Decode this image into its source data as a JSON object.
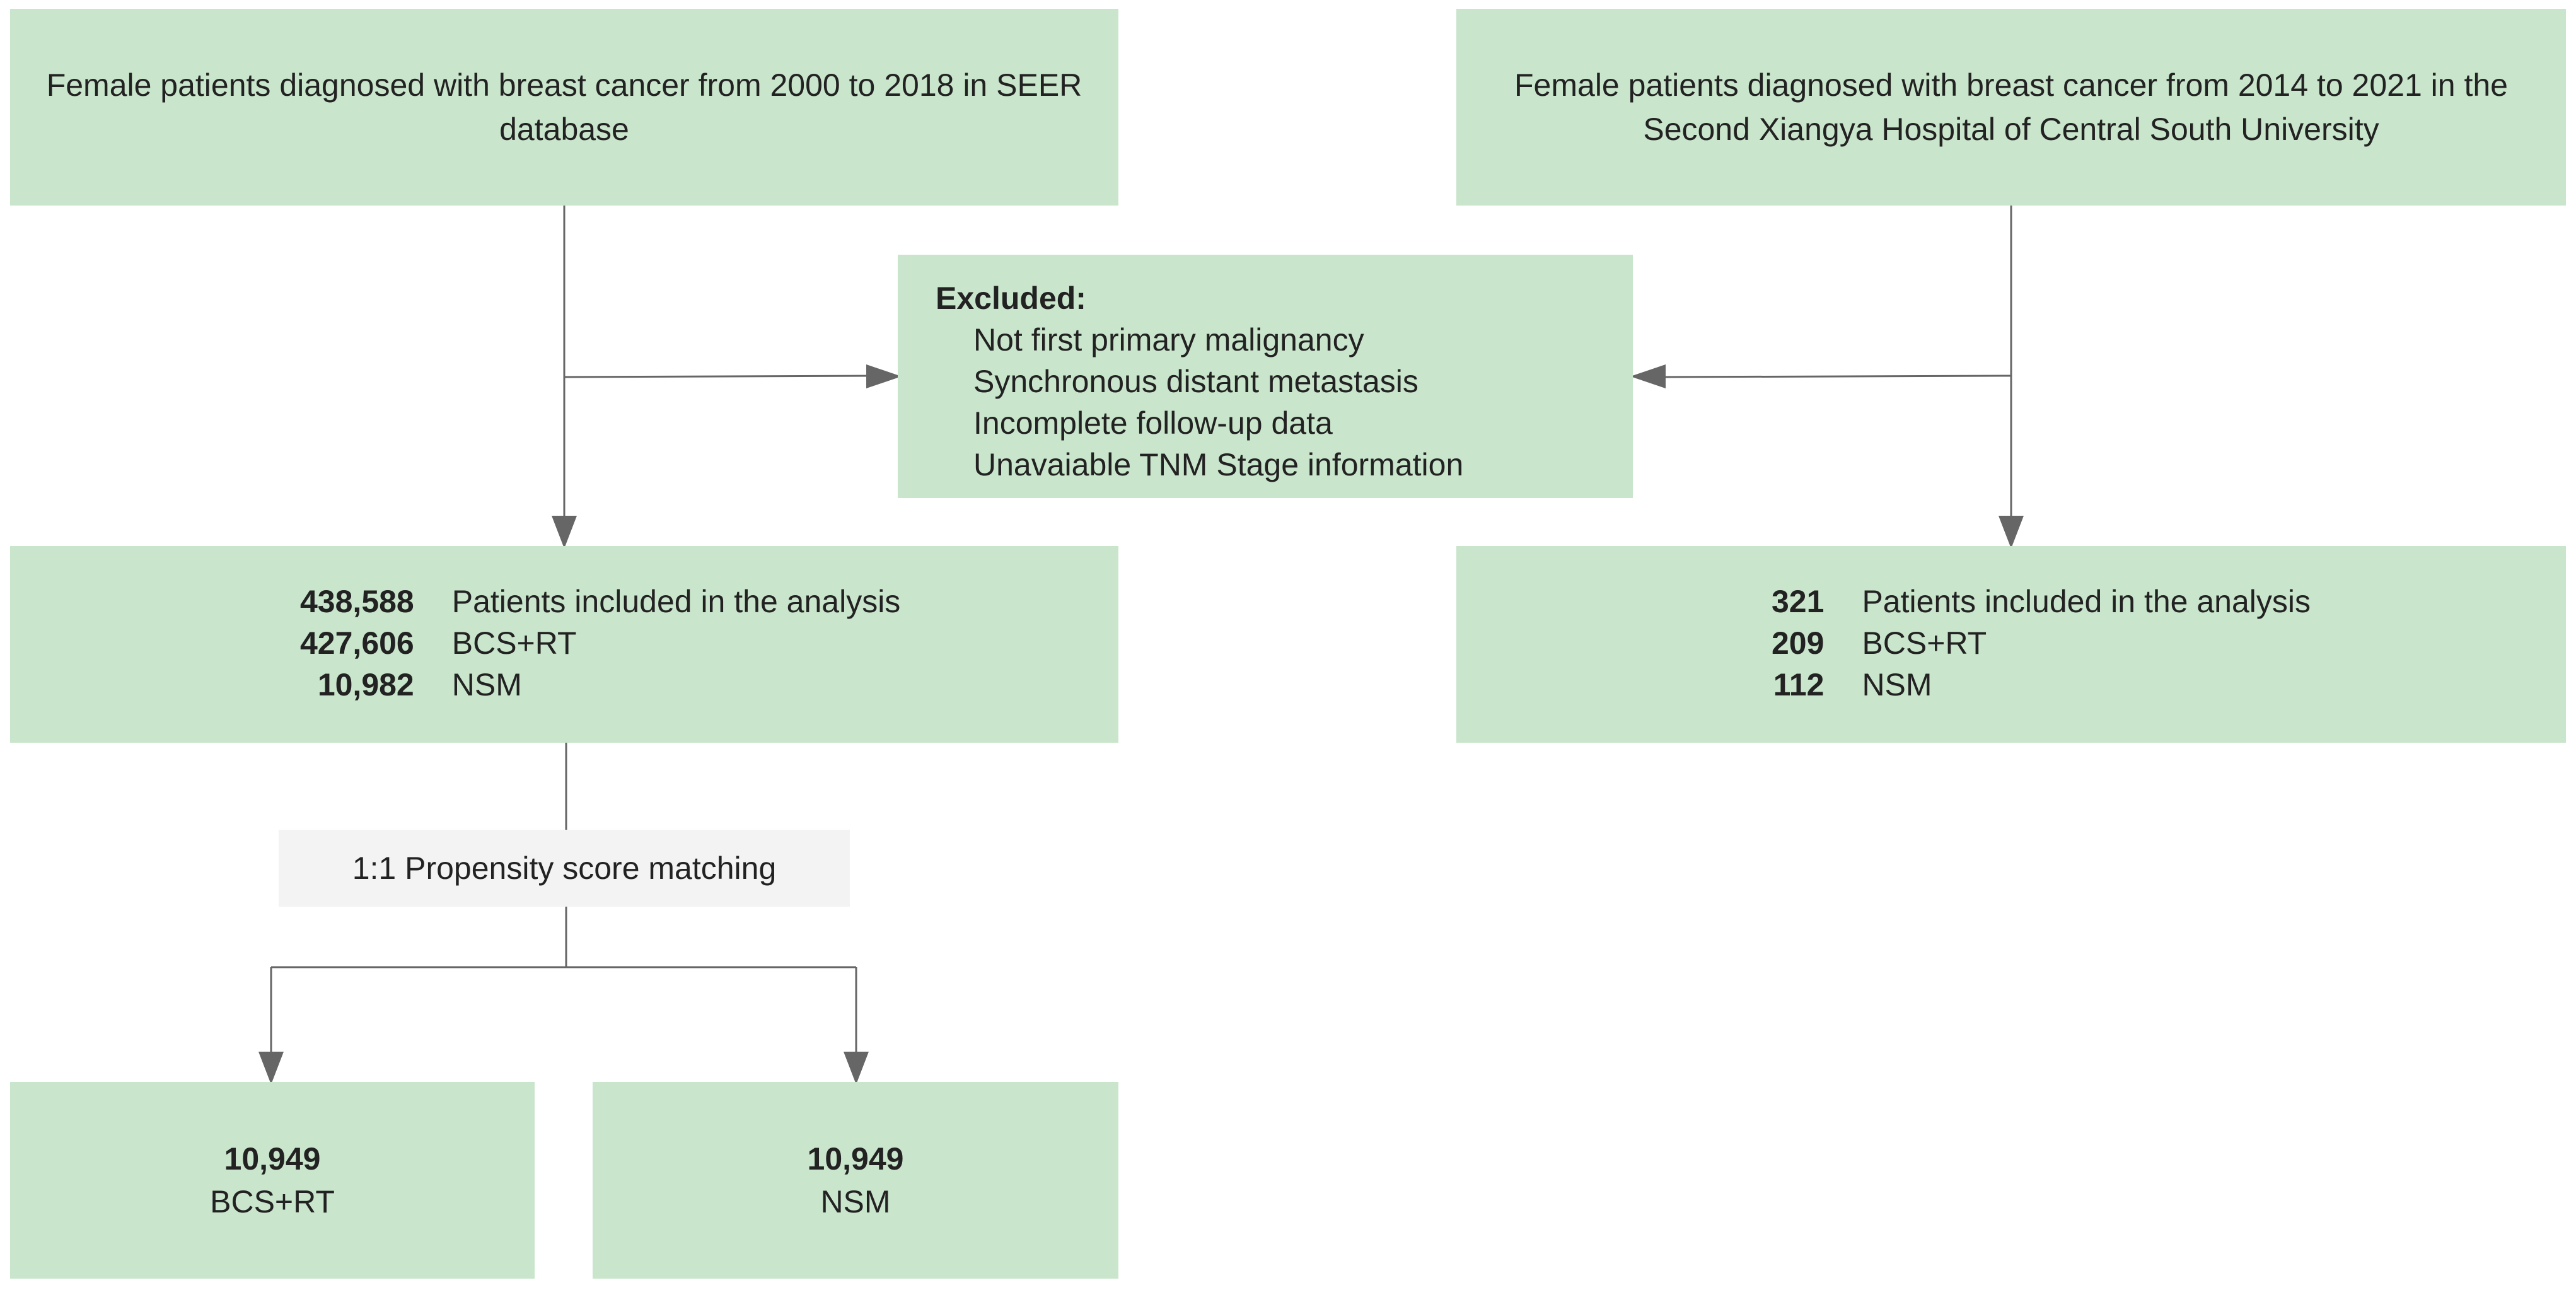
{
  "sources": {
    "seer": "Female patients diagnosed with breast cancer from 2000 to 2018 in SEER database",
    "xiangya": "Female patients diagnosed with breast cancer from 2014 to 2021 in the Second Xiangya Hospital of Central South University"
  },
  "excluded": {
    "title": "Excluded:",
    "items": [
      "Not first primary malignancy",
      "Synchronous distant metastasis",
      "Incomplete follow-up data",
      "Unavaiable TNM Stage information"
    ]
  },
  "seer_counts": [
    {
      "num": "438,588",
      "label": "Patients included in the analysis"
    },
    {
      "num": "427,606",
      "label": "BCS+RT"
    },
    {
      "num": "10,982",
      "label": "NSM"
    }
  ],
  "xiangya_counts": [
    {
      "num": "321",
      "label": "Patients included in the analysis"
    },
    {
      "num": "209",
      "label": "BCS+RT"
    },
    {
      "num": "112",
      "label": "NSM"
    }
  ],
  "matching": "1:1 Propensity score matching",
  "matched": [
    {
      "num": "10,949",
      "label": "BCS+RT"
    },
    {
      "num": "10,949",
      "label": "NSM"
    }
  ],
  "colors": {
    "box_fill": "#c9e5cb",
    "matching_fill": "#f3f3f3",
    "line": "#666666"
  }
}
